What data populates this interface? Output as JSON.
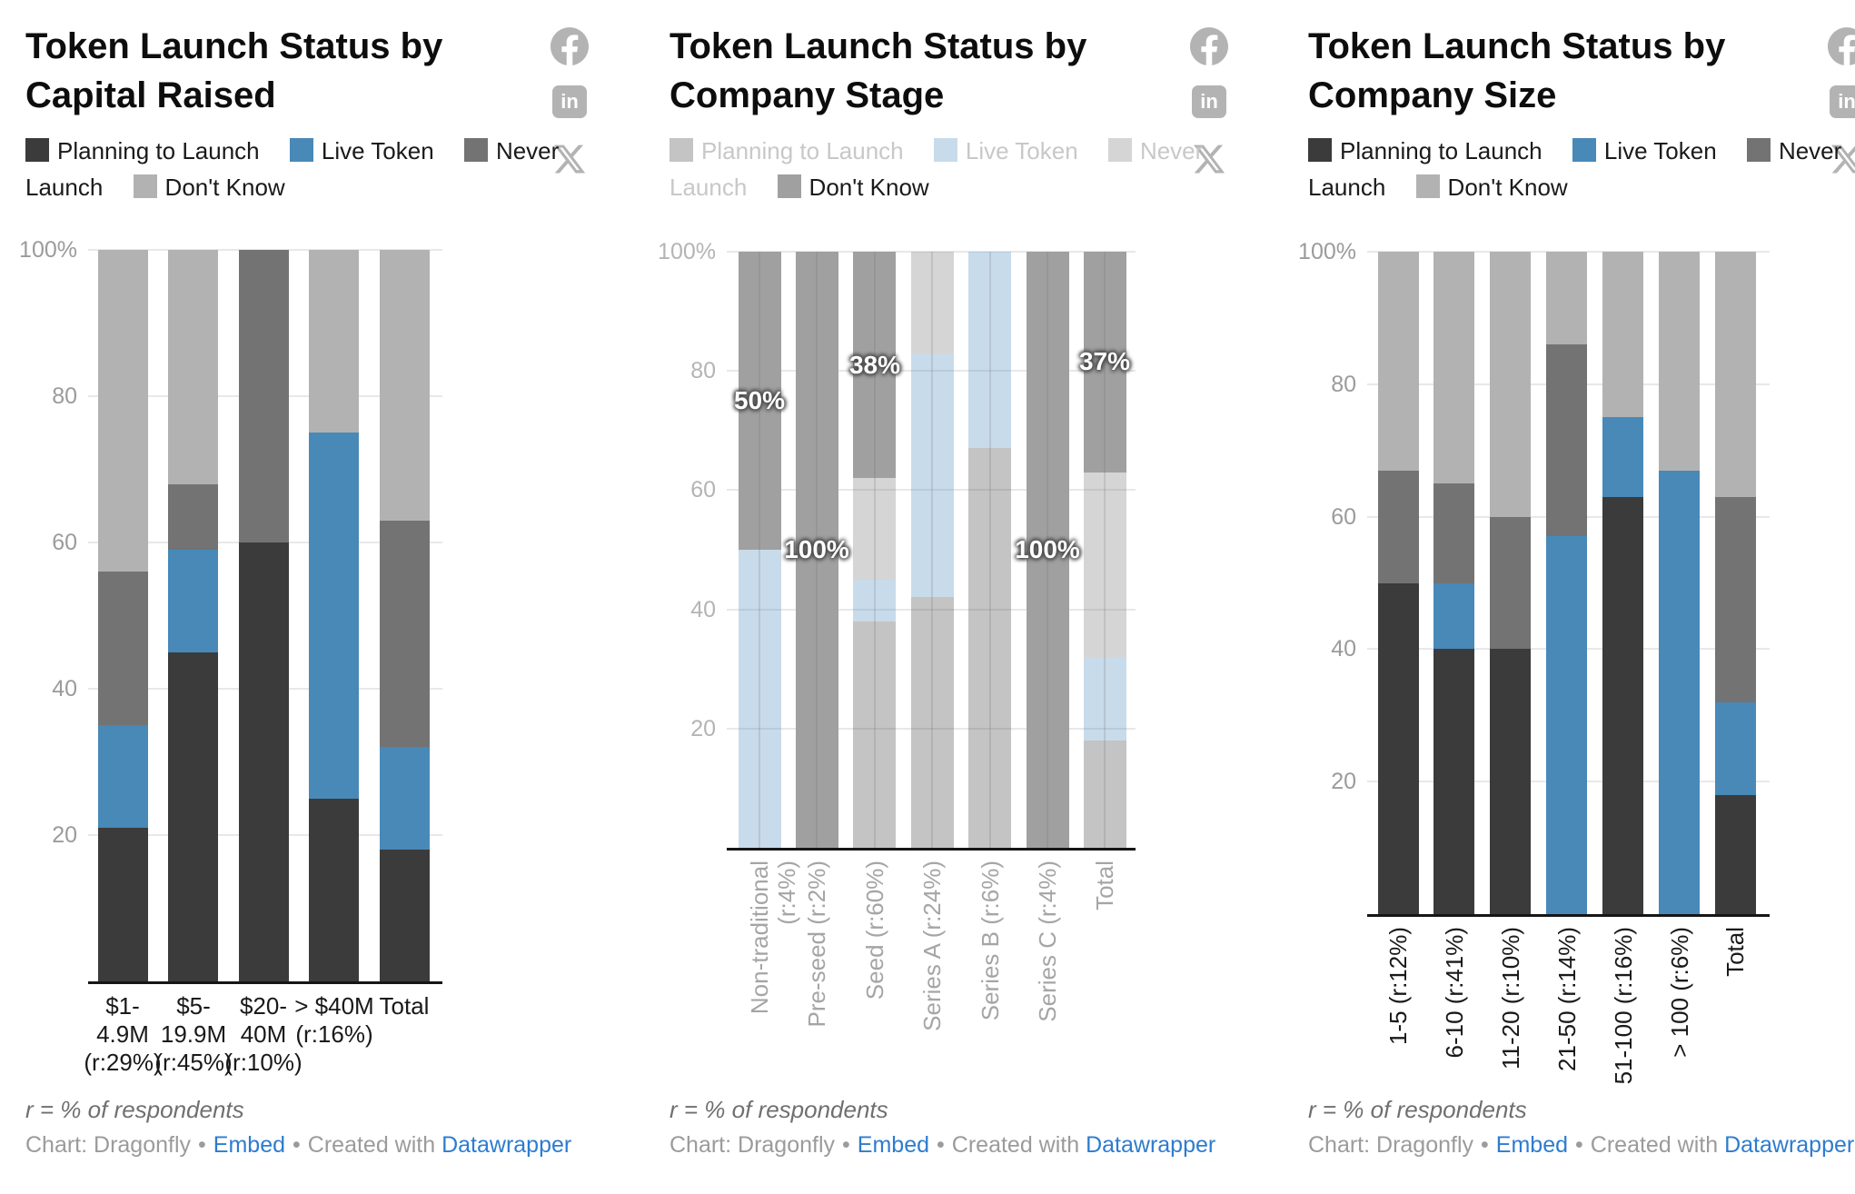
{
  "series_names": [
    "Planning to Launch",
    "Live Token",
    "Never Launch",
    "Don't Know"
  ],
  "y_axis_ticks": [
    "100%",
    "80",
    "60",
    "40",
    "20"
  ],
  "colors": {
    "planning_to_launch": "#3b3b3b",
    "live_token": "#4889b8",
    "never_launch": "#737373",
    "dont_know": "#b2b2b2",
    "dont_know_highlighted": "#a0a0a0",
    "faded_planning_to_launch": "rgba(59,59,59,0.3)",
    "faded_live_token": "rgba(72,137,184,0.3)",
    "faded_never_launch": "rgba(115,115,115,0.3)",
    "faded_dont_know": "rgba(178,178,178,0.3)",
    "link": "#2d7ccf",
    "grid": "#e8e8e8",
    "axis": "#161616",
    "social_icon": "#b3b3b3"
  },
  "footer": {
    "note": "r = % of respondents",
    "credit": "Chart: Dragonfly",
    "separator": "•",
    "embed": "Embed",
    "created_with": "Created with",
    "datawrapper": "Datawrapper"
  },
  "social_icons": [
    "facebook",
    "linkedin",
    "x"
  ],
  "chart_data": [
    {
      "type": "bar",
      "stacked": true,
      "grid": true,
      "ylim": [
        0,
        100
      ],
      "legend_position": "top",
      "title": "Token Launch Status by Capital Raised",
      "categories": [
        "$1-4.9M (r:29%)",
        "$5-19.9M (r:45%)",
        "$20-40M (r:10%)",
        "> $40M (r:16%)",
        "Total"
      ],
      "category_lines": [
        [
          "$1-",
          "4.9M",
          "(r:29%)"
        ],
        [
          "$5-",
          "19.9M",
          "(r:45%)"
        ],
        [
          "$20-",
          "40M",
          "(r:10%)"
        ],
        [
          "> $40M",
          "(r:16%)"
        ],
        [
          "Total"
        ]
      ],
      "series": [
        {
          "name": "Planning to Launch",
          "values": [
            21,
            45,
            60,
            25,
            18
          ]
        },
        {
          "name": "Live Token",
          "values": [
            14,
            14,
            0,
            50,
            14
          ]
        },
        {
          "name": "Never Launch",
          "values": [
            21,
            9,
            40,
            0,
            31
          ]
        },
        {
          "name": "Don't Know",
          "values": [
            44,
            32,
            0,
            25,
            37
          ]
        }
      ]
    },
    {
      "type": "bar",
      "stacked": true,
      "grid": true,
      "ylim": [
        0,
        100
      ],
      "legend_position": "top",
      "title": "Token Launch Status by Company Stage",
      "highlighted_series": "Don't Know",
      "value_labels": [
        "50%",
        "100%",
        "38%",
        null,
        null,
        "100%",
        "37%"
      ],
      "categories": [
        "Non-traditional (r:4%)",
        "Pre-seed (r:2%)",
        "Seed (r:60%)",
        "Series A (r:24%)",
        "Series B (r:6%)",
        "Series C (r:4%)",
        "Total"
      ],
      "series": [
        {
          "name": "Planning to Launch",
          "values": [
            0,
            0,
            38,
            42,
            67,
            0,
            18
          ]
        },
        {
          "name": "Live Token",
          "values": [
            50,
            0,
            7,
            41,
            33,
            0,
            14
          ]
        },
        {
          "name": "Never Launch",
          "values": [
            0,
            0,
            17,
            17,
            0,
            0,
            31
          ]
        },
        {
          "name": "Don't Know",
          "values": [
            50,
            100,
            38,
            0,
            0,
            100,
            37
          ]
        }
      ]
    },
    {
      "type": "bar",
      "stacked": true,
      "grid": true,
      "ylim": [
        0,
        100
      ],
      "legend_position": "top",
      "title": "Token Launch Status by Company Size",
      "categories": [
        "1-5 (r:12%)",
        "6-10 (r:41%)",
        "11-20 (r:10%)",
        "21-50 (r:14%)",
        "51-100 (r:16%)",
        "> 100 (r:6%)",
        "Total"
      ],
      "series": [
        {
          "name": "Planning to Launch",
          "values": [
            50,
            40,
            40,
            0,
            63,
            0,
            18
          ]
        },
        {
          "name": "Live Token",
          "values": [
            0,
            10,
            0,
            57,
            12,
            67,
            14
          ]
        },
        {
          "name": "Never Launch",
          "values": [
            17,
            15,
            20,
            29,
            0,
            0,
            31
          ]
        },
        {
          "name": "Don't Know",
          "values": [
            33,
            35,
            40,
            14,
            25,
            33,
            37
          ]
        }
      ]
    }
  ]
}
